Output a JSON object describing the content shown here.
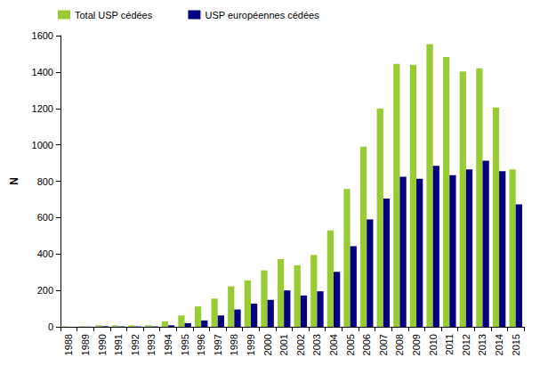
{
  "chart_data": {
    "type": "bar",
    "legend": "top-left",
    "grid": false,
    "y_label": "N",
    "categories": [
      "1988",
      "1989",
      "1990",
      "1991",
      "1992",
      "1993",
      "1994",
      "1995",
      "1996",
      "1997",
      "1998",
      "1999",
      "2000",
      "2001",
      "2002",
      "2003",
      "2004",
      "2005",
      "2006",
      "2007",
      "2008",
      "2009",
      "2010",
      "2011",
      "2012",
      "2013",
      "2014",
      "2015"
    ],
    "ylim": [
      0,
      1600
    ],
    "yticks": [
      0,
      200,
      400,
      600,
      800,
      1000,
      1200,
      1400,
      1600
    ],
    "series": [
      {
        "name": "Total USP cédées",
        "color": "#99cc33",
        "values": [
          2,
          3,
          8,
          8,
          8,
          8,
          30,
          62,
          112,
          155,
          222,
          255,
          310,
          372,
          338,
          395,
          530,
          757,
          990,
          1200,
          1445,
          1440,
          1553,
          1483,
          1403,
          1420,
          1205,
          865
        ]
      },
      {
        "name": "USP européennes cédées",
        "color": "#000080",
        "values": [
          0,
          1,
          3,
          2,
          2,
          2,
          8,
          20,
          35,
          62,
          95,
          127,
          148,
          200,
          172,
          195,
          302,
          443,
          590,
          705,
          825,
          813,
          885,
          833,
          865,
          912,
          855,
          673
        ]
      }
    ]
  }
}
